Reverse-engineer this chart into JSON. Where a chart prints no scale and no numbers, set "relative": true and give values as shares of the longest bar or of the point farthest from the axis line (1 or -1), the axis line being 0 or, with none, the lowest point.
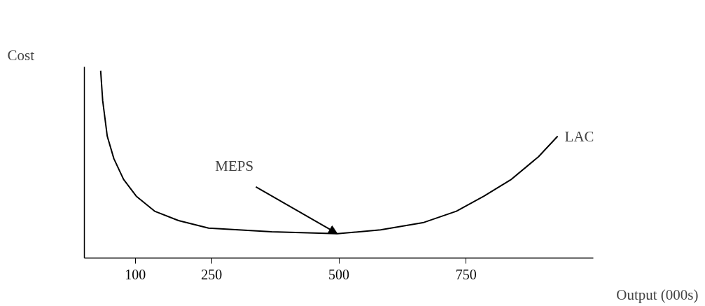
{
  "chart_data": {
    "type": "line",
    "relative": true,
    "xlabel": "Output (000s)",
    "ylabel": "Cost",
    "xlim": [
      0,
      1000
    ],
    "xticks": [
      100,
      250,
      500,
      750
    ],
    "grid": false,
    "tick_labels": "x",
    "marker": "none",
    "line_style": "solid",
    "annotations": [
      {
        "text": "MEPS",
        "x": 497,
        "y": 0.13
      }
    ],
    "series": [
      {
        "name": "LAC",
        "color": "#000000",
        "x": [
          32,
          36,
          45,
          58,
          77,
          102,
          138,
          185,
          244,
          368,
          497,
          582,
          667,
          731,
          785,
          839,
          892,
          930
        ],
        "values": [
          1.0,
          0.84,
          0.65,
          0.53,
          0.42,
          0.33,
          0.25,
          0.2,
          0.16,
          0.14,
          0.13,
          0.15,
          0.19,
          0.25,
          0.33,
          0.42,
          0.54,
          0.65
        ]
      }
    ]
  }
}
